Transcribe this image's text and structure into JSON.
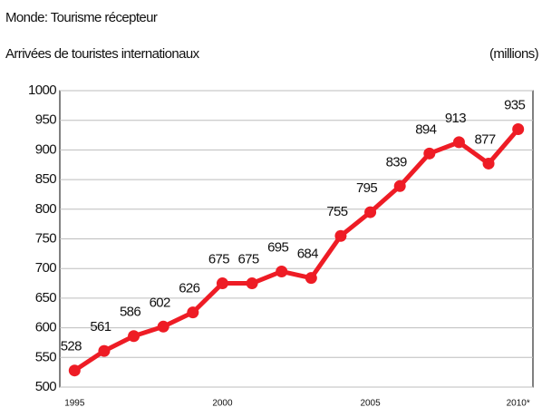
{
  "chart_data": {
    "type": "line",
    "title": "Monde: Tourisme récepteur",
    "subtitle": "Arrivées de touristes internationaux",
    "unit_label": "(millions)",
    "categories": [
      "1995",
      null,
      null,
      null,
      null,
      "2000",
      null,
      null,
      null,
      null,
      "2005",
      null,
      null,
      null,
      null,
      "2010*"
    ],
    "values": [
      528,
      561,
      586,
      602,
      626,
      675,
      675,
      695,
      684,
      755,
      795,
      839,
      894,
      913,
      877,
      935
    ],
    "color": "#ee1c25",
    "ylim": [
      500,
      1000
    ],
    "yticks": [
      500,
      550,
      600,
      650,
      700,
      750,
      800,
      850,
      900,
      950,
      1000
    ],
    "grid": true
  }
}
